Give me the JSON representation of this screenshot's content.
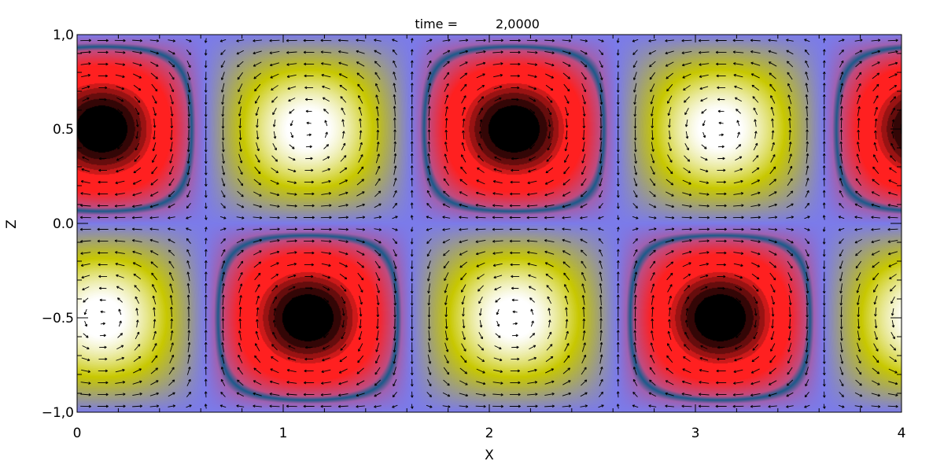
{
  "chart_data": {
    "type": "heatmap",
    "title_label": "time =",
    "title_value": "2,0000",
    "xlabel": "X",
    "ylabel": "Z",
    "xlim": [
      0,
      4
    ],
    "ylim": [
      -1,
      1
    ],
    "x_ticks": [
      {
        "value": 0,
        "label": "0"
      },
      {
        "value": 1,
        "label": "1"
      },
      {
        "value": 2,
        "label": "2"
      },
      {
        "value": 3,
        "label": "3"
      },
      {
        "value": 4,
        "label": "4"
      }
    ],
    "y_ticks": [
      {
        "value": -1,
        "label": "−1,0"
      },
      {
        "value": -0.5,
        "label": "−0.5"
      },
      {
        "value": 0,
        "label": "0.0"
      },
      {
        "value": 0.5,
        "label": "0.5"
      },
      {
        "value": 1,
        "label": "1,0"
      }
    ],
    "field": {
      "description": "periodic cell pattern with vector arrows",
      "wavelength_x": 2,
      "phase_x": 0.12,
      "centers": [
        {
          "x": 0.12,
          "z": 0.5,
          "sign": "negative"
        },
        {
          "x": 1.12,
          "z": 0.5,
          "sign": "positive"
        },
        {
          "x": 2.12,
          "z": 0.5,
          "sign": "negative"
        },
        {
          "x": 3.12,
          "z": 0.5,
          "sign": "positive"
        },
        {
          "x": 0.12,
          "z": -0.5,
          "sign": "positive"
        },
        {
          "x": 1.12,
          "z": -0.5,
          "sign": "negative"
        },
        {
          "x": 2.12,
          "z": -0.5,
          "sign": "positive"
        },
        {
          "x": 3.12,
          "z": -0.5,
          "sign": "negative"
        }
      ]
    },
    "colors": {
      "neutral": "#7b7bea",
      "positive_mid": "#c8c800",
      "positive_peak": "#ffffff",
      "negative_mid": "#ff2020",
      "negative_peak": "#000000",
      "contour": "#1a5a8a",
      "arrow": "#000000"
    }
  }
}
